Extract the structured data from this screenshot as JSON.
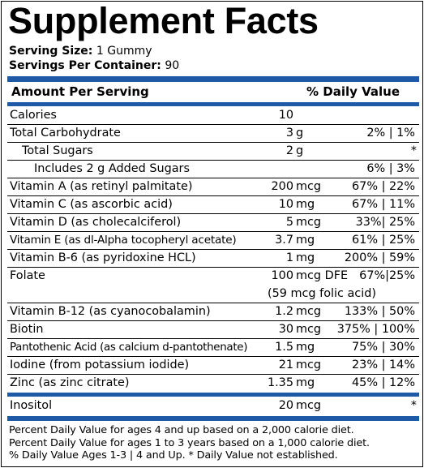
{
  "title": "Supplement Facts",
  "serving": {
    "size_label": "Serving Size:",
    "size_value": "1 Gummy",
    "per_container_label": "Servings Per Container:",
    "per_container_value": "90"
  },
  "header": {
    "amount": "Amount Per Serving",
    "dv": "% Daily Value"
  },
  "rows": [
    {
      "name": "Calories",
      "amount": "10",
      "unit": "",
      "dv": ""
    },
    {
      "name": "Total Carbohydrate",
      "amount": "3",
      "unit": "g",
      "dv": "2% | 1%"
    },
    {
      "name": "Total Sugars",
      "amount": "2",
      "unit": "g",
      "dv": "*"
    },
    {
      "name": "Includes 2 g Added Sugars",
      "amount": "",
      "unit": "",
      "dv": "6% | 3%"
    },
    {
      "name": "Vitamin A (as retinyl palmitate)",
      "amount": "200",
      "unit": "mcg",
      "dv": "67% | 22%"
    },
    {
      "name": "Vitamin C (as ascorbic acid)",
      "amount": "10",
      "unit": "mg",
      "dv": "67% | 11%"
    },
    {
      "name": "Vitamin D (as cholecalciferol)",
      "amount": "5",
      "unit": "mcg",
      "dv": "33%| 25%"
    },
    {
      "name": "Vitamin E (as dl-Alpha tocopheryl acetate)",
      "amount": "3.7",
      "unit": "mg",
      "dv": "61% | 25%"
    },
    {
      "name": "Vitamin B-6 (as pyridoxine HCL)",
      "amount": "1",
      "unit": "mg",
      "dv": "200% | 59%"
    },
    {
      "name": "Folate",
      "amount": "100",
      "unit": "mcg DFE",
      "dv": "67%|25%",
      "note": "(59 mcg folic acid)"
    },
    {
      "name": "Vitamin B-12 (as cyanocobalamin)",
      "amount": "1.2",
      "unit": "mcg",
      "dv": "133% | 50%"
    },
    {
      "name": "Biotin",
      "amount": "30",
      "unit": "mcg",
      "dv": "375% | 100%"
    },
    {
      "name": "Pantothenic Acid (as calcium d-pantothenate)",
      "amount": "1.5",
      "unit": "mg",
      "dv": "75% | 30%"
    },
    {
      "name": "Iodine (from potassium iodide)",
      "amount": "21",
      "unit": "mcg",
      "dv": "23% | 14%"
    },
    {
      "name": "Zinc (as zinc citrate)",
      "amount": "1.35",
      "unit": "mg",
      "dv": "45% | 12%"
    },
    {
      "name": "Inositol",
      "amount": "20",
      "unit": "mcg",
      "dv": "*"
    }
  ],
  "footnotes": [
    "Percent Daily Value for ages 4 and up based on a 2,000 calorie diet.",
    "Percent Daily Value for ages 1 to 3 years based on a 1,000 calorie diet.",
    "% Daily Value Ages 1-3 | 4 and Up. * Daily Value not established."
  ],
  "colors": {
    "rule": "#1f5aa6"
  }
}
